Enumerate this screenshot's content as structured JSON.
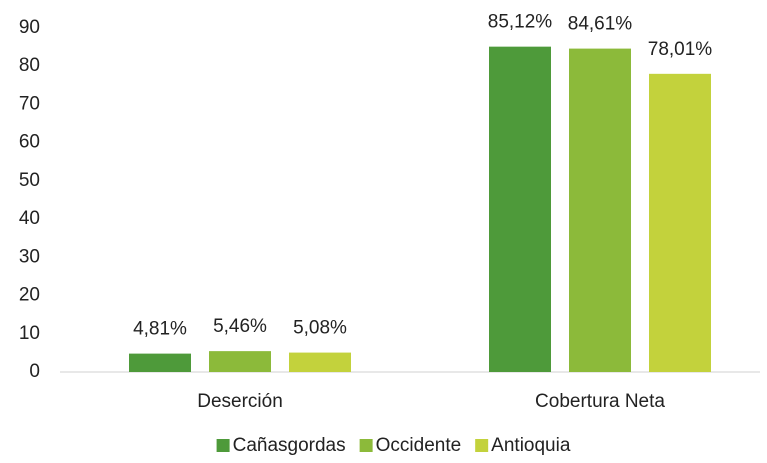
{
  "chart_data": {
    "type": "bar",
    "categories": [
      "Deserción",
      "Cobertura Neta"
    ],
    "series": [
      {
        "name": "Cañasgordas",
        "color": "#4e9a3a",
        "values": [
          4.81,
          85.12
        ],
        "value_labels": [
          "4,81%",
          "85,12%"
        ]
      },
      {
        "name": "Occidente",
        "color": "#8cba3a",
        "values": [
          5.46,
          84.61
        ],
        "value_labels": [
          "5,46%",
          "84,61%"
        ]
      },
      {
        "name": "Antioquia",
        "color": "#c3d23c",
        "values": [
          5.08,
          78.01
        ],
        "value_labels": [
          "5,08%",
          "78,01%"
        ]
      }
    ],
    "ylim": [
      0,
      90
    ],
    "yticks": [
      0,
      10,
      20,
      30,
      40,
      50,
      60,
      70,
      80,
      90
    ],
    "grid": false,
    "legend": "bottom"
  }
}
